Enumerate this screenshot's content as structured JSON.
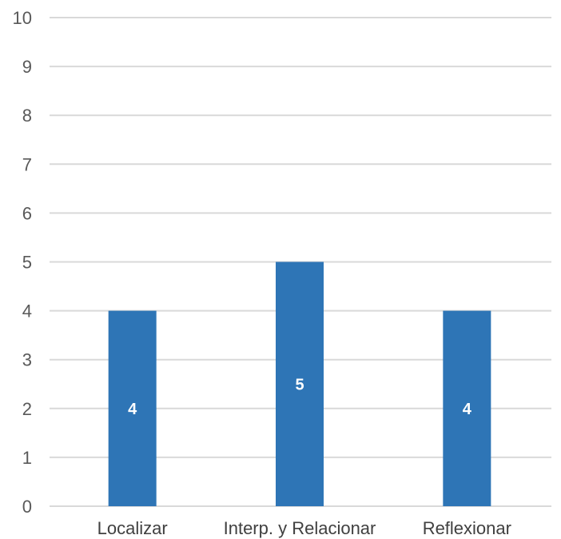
{
  "chart_data": {
    "type": "bar",
    "title": "",
    "xlabel": "",
    "ylabel": "",
    "categories": [
      "Localizar",
      "Interp. y Relacionar",
      "Reflexionar"
    ],
    "values": [
      4,
      5,
      4
    ],
    "data_labels": [
      "4",
      "5",
      "4"
    ],
    "ylim": [
      0,
      10
    ],
    "yticks": [
      "0",
      "1",
      "2",
      "3",
      "4",
      "5",
      "6",
      "7",
      "8",
      "9",
      "10"
    ],
    "grid": true,
    "legend": "none",
    "bar_color": "#2E75B6",
    "grid_color": "#D9D9D9"
  }
}
